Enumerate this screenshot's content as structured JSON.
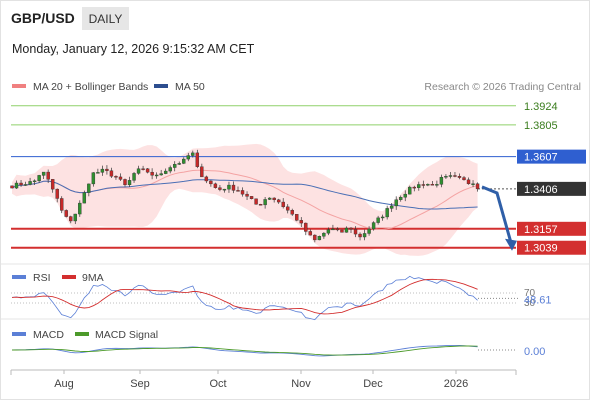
{
  "header": {
    "symbol": "GBP/USD",
    "timeframe": "DAILY",
    "datetime": "Monday, January 12, 2026 9:15:32 AM CET"
  },
  "legend": {
    "ma20_bb": "MA 20 + Bollinger Bands",
    "ma50": "MA 50",
    "credit": "Research © 2026 Trading Central"
  },
  "rsi_legend": {
    "rsi": "RSI",
    "ma": "9MA"
  },
  "macd_legend": {
    "macd": "MACD",
    "signal": "MACD Signal"
  },
  "colors": {
    "bb_fill": "#fde2e2",
    "ma20": "#f4a3a3",
    "ma50": "#4a6fb5",
    "candle_up": "#2f8f2f",
    "candle_down": "#c62828",
    "resistance": "#8fd16a",
    "pivot": "#2f5fd0",
    "support": "#d32f2f",
    "current": "#333333",
    "arrow": "#2f5fa8",
    "rsi": "#5b7fd6",
    "rsi_ma": "#d32f2f",
    "macd": "#5b7fd6",
    "macd_signal": "#4c9a2a"
  },
  "chart_data": [
    {
      "type": "candlestick",
      "title": "GBP/USD",
      "x_labels": [
        "Aug",
        "Sep",
        "Oct",
        "Nov",
        "Dec",
        "2026"
      ],
      "ylim": [
        1.2975,
        1.3985
      ],
      "levels": [
        {
          "value": 1.3924,
          "label": "1.3924",
          "kind": "resistance"
        },
        {
          "value": 1.3805,
          "label": "1.3805",
          "kind": "resistance"
        },
        {
          "value": 1.3607,
          "label": "1.3607",
          "kind": "pivot"
        },
        {
          "value": 1.3406,
          "label": "1.3406",
          "kind": "current"
        },
        {
          "value": 1.3157,
          "label": "1.3157",
          "kind": "support"
        },
        {
          "value": 1.3039,
          "label": "1.3039",
          "kind": "support"
        }
      ],
      "scenario": "bearish arrow from current price toward 1.3039"
    },
    {
      "type": "line",
      "name": "RSI",
      "levels": [
        70,
        30
      ],
      "value_label": "48.61",
      "series": [
        "RSI",
        "9MA"
      ]
    },
    {
      "type": "line",
      "name": "MACD",
      "value_label": "0.00",
      "series": [
        "MACD",
        "MACD Signal"
      ]
    }
  ]
}
